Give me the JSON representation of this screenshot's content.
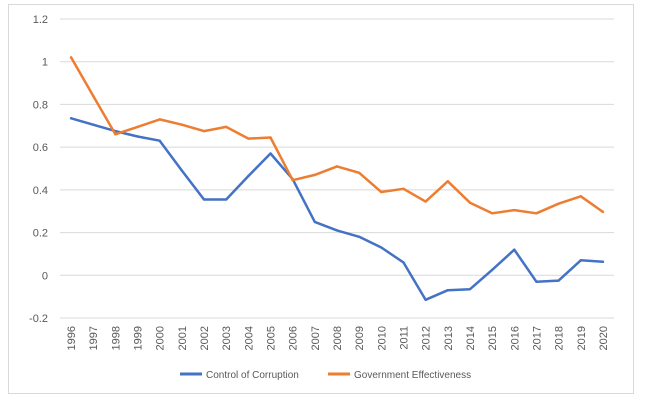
{
  "chart_data": {
    "type": "line",
    "title": "",
    "xlabel": "",
    "ylabel": "",
    "x": [
      "1996",
      "1997",
      "1998",
      "1999",
      "2000",
      "2001",
      "2002",
      "2003",
      "2004",
      "2005",
      "2006",
      "2007",
      "2008",
      "2009",
      "2010",
      "2011",
      "2012",
      "2013",
      "2014",
      "2015",
      "2016",
      "2017",
      "2018",
      "2019",
      "2020"
    ],
    "ylim": [
      -0.2,
      1.2
    ],
    "yticks": [
      -0.2,
      0,
      0.2,
      0.4,
      0.6,
      0.8,
      1,
      1.2
    ],
    "grid": true,
    "legend_position": "bottom",
    "series": [
      {
        "name": "Control of Corruption",
        "color": "#4472C4",
        "values": [
          0.735,
          0.705,
          0.675,
          0.65,
          0.63,
          0.49,
          0.355,
          0.355,
          0.465,
          0.57,
          0.45,
          0.25,
          0.21,
          0.18,
          0.13,
          0.06,
          -0.115,
          -0.07,
          -0.065,
          0.025,
          0.12,
          -0.03,
          -0.025,
          0.07,
          0.063
        ]
      },
      {
        "name": "Government Effectiveness",
        "color": "#ED7D31",
        "values": [
          1.02,
          0.84,
          0.66,
          0.695,
          0.73,
          0.705,
          0.675,
          0.695,
          0.64,
          0.645,
          0.445,
          0.47,
          0.51,
          0.48,
          0.39,
          0.405,
          0.345,
          0.44,
          0.34,
          0.29,
          0.305,
          0.29,
          0.335,
          0.37,
          0.297
        ]
      }
    ]
  }
}
